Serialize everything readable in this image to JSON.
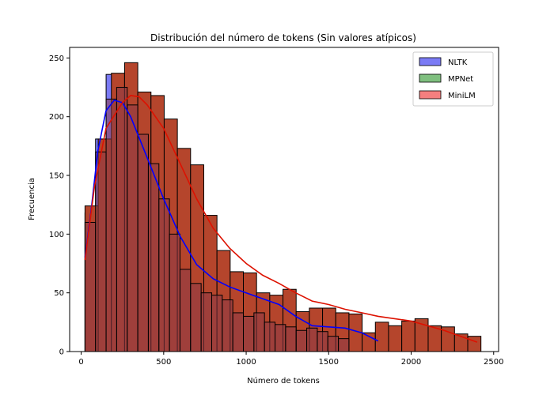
{
  "chart_data": {
    "type": "bar",
    "title": "Distribución del número de tokens (Sin valores atípicos)",
    "xlabel": "Número de tokens",
    "ylabel": "Frecuencia",
    "xlim": [
      -70,
      2530
    ],
    "ylim": [
      0,
      259
    ],
    "xticks": [
      0,
      500,
      1000,
      1500,
      2000,
      2500
    ],
    "yticks": [
      0,
      50,
      100,
      150,
      200,
      250
    ],
    "legend_position": "top-right",
    "series": [
      {
        "name": "NLTK",
        "color": "#0000ff",
        "bin_start": 23,
        "bin_width": 64,
        "values": [
          118,
          181,
          236,
          232,
          213,
          187,
          160,
          134,
          102,
          69,
          57,
          50,
          49,
          45,
          33,
          31,
          34,
          25,
          24,
          22,
          19,
          21,
          18,
          14,
          12,
          10,
          9,
          8
        ],
        "kde": [
          [
            23,
            80
          ],
          [
            60,
            120
          ],
          [
            100,
            170
          ],
          [
            150,
            205
          ],
          [
            200,
            214
          ],
          [
            250,
            212
          ],
          [
            300,
            200
          ],
          [
            400,
            165
          ],
          [
            500,
            130
          ],
          [
            600,
            98
          ],
          [
            700,
            74
          ],
          [
            800,
            62
          ],
          [
            900,
            55
          ],
          [
            1000,
            50
          ],
          [
            1100,
            45
          ],
          [
            1200,
            40
          ],
          [
            1300,
            30
          ],
          [
            1400,
            22
          ],
          [
            1500,
            21
          ],
          [
            1600,
            20
          ],
          [
            1700,
            16
          ],
          [
            1800,
            9
          ]
        ]
      },
      {
        "name": "MPNet",
        "color": "#008000",
        "bin_start": 23,
        "bin_width": 64,
        "values": [
          110,
          170,
          215,
          225,
          210,
          185,
          160,
          130,
          100,
          70,
          58,
          50,
          48,
          44,
          33,
          30,
          33,
          25,
          23,
          21,
          18,
          20,
          17,
          13,
          11
        ],
        "kde": []
      },
      {
        "name": "MiniLM",
        "color": "#ff0000",
        "bin_start": 23,
        "bin_width": 80,
        "values": [
          124,
          181,
          237,
          246,
          221,
          218,
          198,
          173,
          159,
          116,
          86,
          68,
          67,
          50,
          48,
          53,
          34,
          37,
          37,
          33,
          32,
          16,
          25,
          22,
          26,
          28,
          22,
          21,
          15,
          13
        ],
        "kde": [
          [
            23,
            78
          ],
          [
            80,
            140
          ],
          [
            150,
            190
          ],
          [
            250,
            212
          ],
          [
            300,
            218
          ],
          [
            350,
            217
          ],
          [
            400,
            210
          ],
          [
            500,
            190
          ],
          [
            600,
            160
          ],
          [
            700,
            130
          ],
          [
            800,
            105
          ],
          [
            900,
            88
          ],
          [
            1000,
            75
          ],
          [
            1100,
            65
          ],
          [
            1200,
            58
          ],
          [
            1300,
            50
          ],
          [
            1400,
            43
          ],
          [
            1500,
            40
          ],
          [
            1600,
            36
          ],
          [
            1700,
            33
          ],
          [
            1800,
            30
          ],
          [
            1900,
            28
          ],
          [
            2000,
            26
          ],
          [
            2100,
            22
          ],
          [
            2200,
            18
          ],
          [
            2300,
            13
          ],
          [
            2400,
            8
          ]
        ]
      }
    ],
    "legend": [
      "NLTK",
      "MPNet",
      "MiniLM"
    ],
    "overlap_colors": {
      "histogram_combined": "#b5452c",
      "nltk_minilm_overlap": "#8d3a48"
    }
  }
}
